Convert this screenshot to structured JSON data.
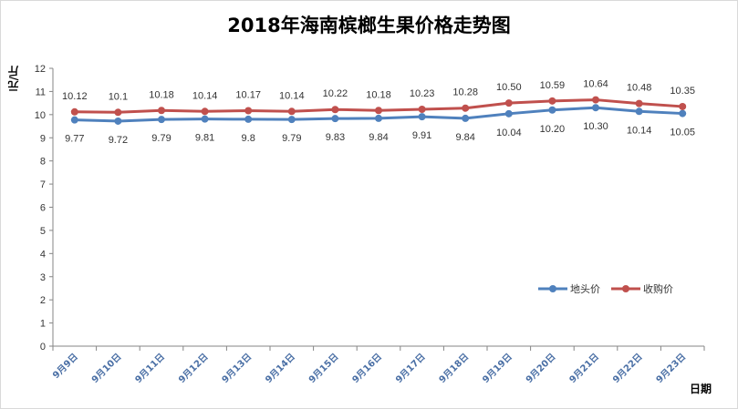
{
  "chart_data": {
    "type": "line",
    "title": "2018年海南槟榔生果价格走势图",
    "xlabel": "日期",
    "ylabel": "元/斤",
    "ylim": [
      0,
      12
    ],
    "yticks": [
      "0",
      "1",
      "2",
      "3",
      "4",
      "5",
      "6",
      "7",
      "8",
      "9",
      "10",
      "11",
      "12"
    ],
    "categories": [
      "9月9日",
      "9月10日",
      "9月11日",
      "9月12日",
      "9月13日",
      "9月14日",
      "9月15日",
      "9月16日",
      "9月17日",
      "9月18日",
      "9月19日",
      "9月20日",
      "9月21日",
      "9月22日",
      "9月23日"
    ],
    "series": [
      {
        "name": "地头价",
        "color": "#4f81bd",
        "values": [
          9.77,
          9.72,
          9.79,
          9.81,
          9.8,
          9.79,
          9.83,
          9.84,
          9.91,
          9.84,
          10.04,
          10.2,
          10.3,
          10.14,
          10.05
        ],
        "labels": [
          "9.77",
          "9.72",
          "9.79",
          "9.81",
          "9.8",
          "9.79",
          "9.83",
          "9.84",
          "9.91",
          "9.84",
          "10.04",
          "10.20",
          "10.30",
          "10.14",
          "10.05"
        ]
      },
      {
        "name": "收购价",
        "color": "#c0504d",
        "values": [
          10.12,
          10.1,
          10.18,
          10.14,
          10.17,
          10.14,
          10.22,
          10.18,
          10.23,
          10.28,
          10.5,
          10.59,
          10.64,
          10.48,
          10.35
        ],
        "labels": [
          "10.12",
          "10.1",
          "10.18",
          "10.14",
          "10.17",
          "10.14",
          "10.22",
          "10.18",
          "10.23",
          "10.28",
          "10.50",
          "10.59",
          "10.64",
          "10.48",
          "10.35"
        ]
      }
    ],
    "legend": "right",
    "grid": false
  }
}
